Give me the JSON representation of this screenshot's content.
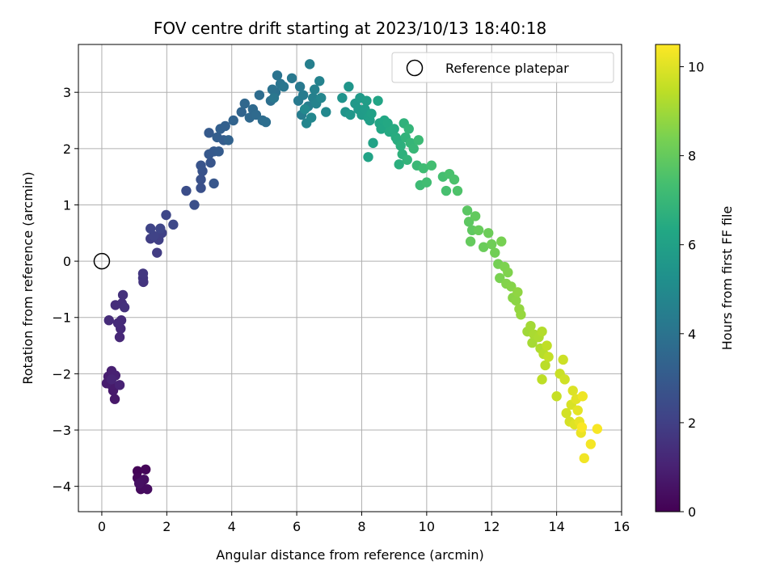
{
  "chart_data": {
    "type": "scatter",
    "title": "FOV centre drift starting at 2023/10/13 18:40:18",
    "xlabel": "Angular distance from reference (arcmin)",
    "ylabel": "Rotation from reference (arcmin)",
    "xlim": [
      -0.72,
      16.0
    ],
    "ylim": [
      -4.45,
      3.85
    ],
    "x_ticks": [
      0,
      2,
      4,
      6,
      8,
      10,
      12,
      14,
      16
    ],
    "y_ticks": [
      -4,
      -3,
      -2,
      -1,
      0,
      1,
      2,
      3
    ],
    "grid": true,
    "legend": {
      "position": "top-right",
      "entries": [
        "Reference platepar"
      ]
    },
    "reference_point": {
      "x": 0,
      "y": 0
    },
    "colorbar": {
      "label": "Hours from first FF file",
      "colormap": "viridis",
      "range": [
        0,
        10.5
      ],
      "ticks": [
        0,
        2,
        4,
        6,
        8,
        10
      ]
    },
    "points": [
      [
        1.1,
        -3.73,
        0.1
      ],
      [
        1.35,
        -3.7,
        0.15
      ],
      [
        1.1,
        -3.85,
        0.2
      ],
      [
        1.25,
        -3.9,
        0.25
      ],
      [
        1.2,
        -4.05,
        0.3
      ],
      [
        1.4,
        -4.05,
        0.35
      ],
      [
        1.3,
        -3.88,
        0.4
      ],
      [
        1.15,
        -3.95,
        0.45
      ],
      [
        0.4,
        -2.45,
        0.7
      ],
      [
        0.35,
        -2.3,
        0.75
      ],
      [
        0.3,
        -2.2,
        0.8
      ],
      [
        0.15,
        -2.17,
        0.85
      ],
      [
        0.2,
        -2.05,
        0.9
      ],
      [
        0.3,
        -1.95,
        0.95
      ],
      [
        0.42,
        -2.03,
        1.0
      ],
      [
        0.55,
        -2.2,
        1.05
      ],
      [
        0.3,
        -2.1,
        1.1
      ],
      [
        0.55,
        -1.35,
        1.2
      ],
      [
        0.58,
        -1.2,
        1.25
      ],
      [
        0.6,
        -1.05,
        1.3
      ],
      [
        0.5,
        -1.1,
        1.3
      ],
      [
        0.22,
        -1.05,
        1.35
      ],
      [
        0.42,
        -0.78,
        1.4
      ],
      [
        0.62,
        -0.75,
        1.45
      ],
      [
        0.7,
        -0.82,
        1.5
      ],
      [
        0.65,
        -0.6,
        1.5
      ],
      [
        1.28,
        -0.37,
        1.6
      ],
      [
        1.27,
        -0.3,
        1.65
      ],
      [
        1.27,
        -0.22,
        1.7
      ],
      [
        1.7,
        0.15,
        1.9
      ],
      [
        1.5,
        0.4,
        1.95
      ],
      [
        1.75,
        0.38,
        2.0
      ],
      [
        1.85,
        0.5,
        2.05
      ],
      [
        1.6,
        0.45,
        2.1
      ],
      [
        1.5,
        0.58,
        2.15
      ],
      [
        1.8,
        0.58,
        2.2
      ],
      [
        1.98,
        0.82,
        2.25
      ],
      [
        2.2,
        0.65,
        2.3
      ],
      [
        2.6,
        1.25,
        2.5
      ],
      [
        2.85,
        1.0,
        2.55
      ],
      [
        3.05,
        1.3,
        2.6
      ],
      [
        3.05,
        1.45,
        2.65
      ],
      [
        3.1,
        1.6,
        2.7
      ],
      [
        3.05,
        1.7,
        2.75
      ],
      [
        3.35,
        1.75,
        2.8
      ],
      [
        3.45,
        1.38,
        2.85
      ],
      [
        3.3,
        1.9,
        2.9
      ],
      [
        3.45,
        1.95,
        2.95
      ],
      [
        3.3,
        2.28,
        3.0
      ],
      [
        3.6,
        1.95,
        3.05
      ],
      [
        3.75,
        2.15,
        3.1
      ],
      [
        3.55,
        2.2,
        3.15
      ],
      [
        3.65,
        2.35,
        3.2
      ],
      [
        3.8,
        2.4,
        3.25
      ],
      [
        3.9,
        2.15,
        3.3
      ],
      [
        4.05,
        2.5,
        3.35
      ],
      [
        4.3,
        2.65,
        3.4
      ],
      [
        4.4,
        2.8,
        3.5
      ],
      [
        4.55,
        2.55,
        3.55
      ],
      [
        4.65,
        2.7,
        3.6
      ],
      [
        4.75,
        2.6,
        3.65
      ],
      [
        4.85,
        2.95,
        3.7
      ],
      [
        4.95,
        2.5,
        3.75
      ],
      [
        5.05,
        2.47,
        3.8
      ],
      [
        5.2,
        2.85,
        3.85
      ],
      [
        5.35,
        3.0,
        3.9
      ],
      [
        5.25,
        3.05,
        3.95
      ],
      [
        5.4,
        3.3,
        4.0
      ],
      [
        5.5,
        3.15,
        4.05
      ],
      [
        5.6,
        3.1,
        4.1
      ],
      [
        5.3,
        2.9,
        4.15
      ],
      [
        5.85,
        3.25,
        4.2
      ],
      [
        6.1,
        3.1,
        4.25
      ],
      [
        6.05,
        2.85,
        4.3
      ],
      [
        6.2,
        2.95,
        4.35
      ],
      [
        6.15,
        2.6,
        4.4
      ],
      [
        6.35,
        2.75,
        4.45
      ],
      [
        6.4,
        3.5,
        4.5
      ],
      [
        6.5,
        2.9,
        4.55
      ],
      [
        6.55,
        3.05,
        4.6
      ],
      [
        6.7,
        3.2,
        4.65
      ],
      [
        6.6,
        2.8,
        4.7
      ],
      [
        6.3,
        2.45,
        4.75
      ],
      [
        6.75,
        2.9,
        4.8
      ],
      [
        6.45,
        2.55,
        4.85
      ],
      [
        6.9,
        2.65,
        4.9
      ],
      [
        6.25,
        2.7,
        4.95
      ],
      [
        7.4,
        2.9,
        5.4
      ],
      [
        7.5,
        2.65,
        5.45
      ],
      [
        7.6,
        3.1,
        5.5
      ],
      [
        7.65,
        2.6,
        5.55
      ],
      [
        7.8,
        2.8,
        5.6
      ],
      [
        7.9,
        2.7,
        5.65
      ],
      [
        7.95,
        2.9,
        5.7
      ],
      [
        8.0,
        2.6,
        5.75
      ],
      [
        8.1,
        2.7,
        5.8
      ],
      [
        8.15,
        2.85,
        5.85
      ],
      [
        8.2,
        2.55,
        5.9
      ],
      [
        8.25,
        2.5,
        5.95
      ],
      [
        8.3,
        2.62,
        6.0
      ],
      [
        8.35,
        2.1,
        6.05
      ],
      [
        8.2,
        1.85,
        6.1
      ],
      [
        8.5,
        2.85,
        6.15
      ],
      [
        8.55,
        2.45,
        6.2
      ],
      [
        8.6,
        2.35,
        6.25
      ],
      [
        8.7,
        2.5,
        6.3
      ],
      [
        8.8,
        2.45,
        6.35
      ],
      [
        8.85,
        2.3,
        6.4
      ],
      [
        9.0,
        2.35,
        6.45
      ],
      [
        9.05,
        2.2,
        6.5
      ],
      [
        9.1,
        2.15,
        6.55
      ],
      [
        9.15,
        1.72,
        6.6
      ],
      [
        9.2,
        2.05,
        6.65
      ],
      [
        9.25,
        1.9,
        6.7
      ],
      [
        9.3,
        2.45,
        6.75
      ],
      [
        9.35,
        2.2,
        6.8
      ],
      [
        9.4,
        1.8,
        6.85
      ],
      [
        9.45,
        2.35,
        6.9
      ],
      [
        9.5,
        2.1,
        6.95
      ],
      [
        9.6,
        2.0,
        7.0
      ],
      [
        9.7,
        1.7,
        7.05
      ],
      [
        9.75,
        2.15,
        7.1
      ],
      [
        9.8,
        1.35,
        7.15
      ],
      [
        9.9,
        1.65,
        7.2
      ],
      [
        10.0,
        1.4,
        7.25
      ],
      [
        10.15,
        1.7,
        7.3
      ],
      [
        10.5,
        1.5,
        7.35
      ],
      [
        10.6,
        1.25,
        7.4
      ],
      [
        10.7,
        1.55,
        7.45
      ],
      [
        10.85,
        1.45,
        7.5
      ],
      [
        10.95,
        1.25,
        7.55
      ],
      [
        11.25,
        0.9,
        7.8
      ],
      [
        11.3,
        0.7,
        7.85
      ],
      [
        11.4,
        0.55,
        7.9
      ],
      [
        11.5,
        0.8,
        7.95
      ],
      [
        11.35,
        0.35,
        8.0
      ],
      [
        11.6,
        0.55,
        8.05
      ],
      [
        11.75,
        0.25,
        8.1
      ],
      [
        11.9,
        0.5,
        8.15
      ],
      [
        12.0,
        0.3,
        8.2
      ],
      [
        12.1,
        0.15,
        8.25
      ],
      [
        12.2,
        -0.05,
        8.3
      ],
      [
        12.3,
        0.35,
        8.35
      ],
      [
        12.25,
        -0.3,
        8.4
      ],
      [
        12.4,
        -0.1,
        8.45
      ],
      [
        12.5,
        -0.2,
        8.5
      ],
      [
        12.45,
        -0.4,
        8.55
      ],
      [
        12.6,
        -0.45,
        8.6
      ],
      [
        12.65,
        -0.65,
        8.65
      ],
      [
        12.75,
        -0.7,
        8.7
      ],
      [
        12.8,
        -0.55,
        8.75
      ],
      [
        12.85,
        -0.85,
        8.8
      ],
      [
        12.9,
        -0.95,
        8.85
      ],
      [
        13.1,
        -1.25,
        9.0
      ],
      [
        13.2,
        -1.15,
        9.05
      ],
      [
        13.25,
        -1.45,
        9.1
      ],
      [
        13.3,
        -1.3,
        9.15
      ],
      [
        13.45,
        -1.35,
        9.2
      ],
      [
        13.5,
        -1.55,
        9.25
      ],
      [
        13.55,
        -1.25,
        9.3
      ],
      [
        13.6,
        -1.65,
        9.35
      ],
      [
        13.65,
        -1.85,
        9.4
      ],
      [
        13.55,
        -2.1,
        9.45
      ],
      [
        13.7,
        -1.5,
        9.5
      ],
      [
        13.75,
        -1.7,
        9.55
      ],
      [
        14.0,
        -2.4,
        9.6
      ],
      [
        14.1,
        -2.0,
        9.65
      ],
      [
        14.2,
        -1.75,
        9.7
      ],
      [
        14.25,
        -2.1,
        9.75
      ],
      [
        14.3,
        -2.7,
        9.8
      ],
      [
        14.4,
        -2.85,
        9.85
      ],
      [
        14.45,
        -2.55,
        9.9
      ],
      [
        14.5,
        -2.3,
        9.95
      ],
      [
        14.55,
        -2.9,
        10.0
      ],
      [
        14.6,
        -2.45,
        10.05
      ],
      [
        14.65,
        -2.65,
        10.1
      ],
      [
        14.7,
        -2.85,
        10.15
      ],
      [
        14.75,
        -3.05,
        10.2
      ],
      [
        14.8,
        -2.4,
        10.25
      ],
      [
        14.85,
        -3.5,
        10.3
      ],
      [
        15.05,
        -3.25,
        10.35
      ],
      [
        15.25,
        -2.98,
        10.4
      ],
      [
        14.78,
        -2.95,
        10.45
      ]
    ]
  }
}
